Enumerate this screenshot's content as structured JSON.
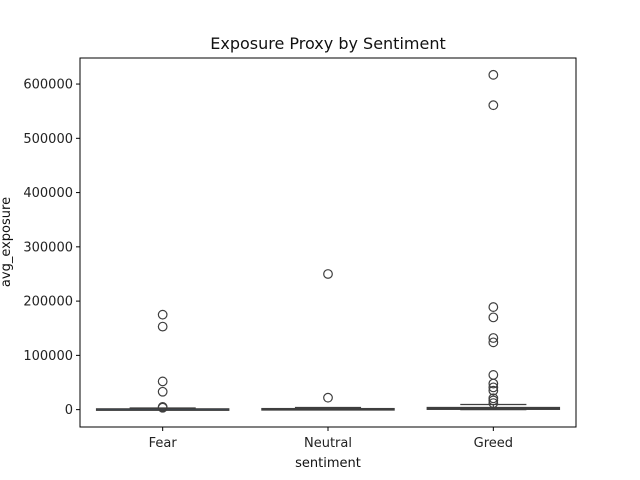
{
  "chart_data": {
    "type": "box",
    "title": "Exposure Proxy by Sentiment",
    "xlabel": "sentiment",
    "ylabel": "avg_exposure",
    "categories": [
      "Fear",
      "Neutral",
      "Greed"
    ],
    "ylim": [
      -32000,
      648000
    ],
    "yticks": [
      0,
      100000,
      200000,
      300000,
      400000,
      500000,
      600000
    ],
    "ytick_labels": [
      "0",
      "100000",
      "200000",
      "300000",
      "400000",
      "500000",
      "600000"
    ],
    "grid": false,
    "boxes": [
      {
        "category": "Fear",
        "whisker_low": 0,
        "q1": 300,
        "median": 800,
        "q3": 1500,
        "whisker_high": 3000,
        "outliers": [
          175000,
          153000,
          52000,
          33000,
          5000,
          3500
        ]
      },
      {
        "category": "Neutral",
        "whisker_low": 0,
        "q1": 400,
        "median": 1000,
        "q3": 2000,
        "whisker_high": 4000,
        "outliers": [
          250000,
          22000
        ]
      },
      {
        "category": "Greed",
        "whisker_low": 0,
        "q1": 500,
        "median": 2000,
        "q3": 4000,
        "whisker_high": 9500,
        "outliers": [
          617000,
          561000,
          189000,
          170000,
          132000,
          124000,
          64000,
          48000,
          41000,
          35000,
          21000,
          17000,
          12000
        ]
      }
    ],
    "colors": {
      "box_fill": "#3a6ea5",
      "line": "#3f3f3f",
      "outlier_edge": "#3f3f3f"
    }
  }
}
